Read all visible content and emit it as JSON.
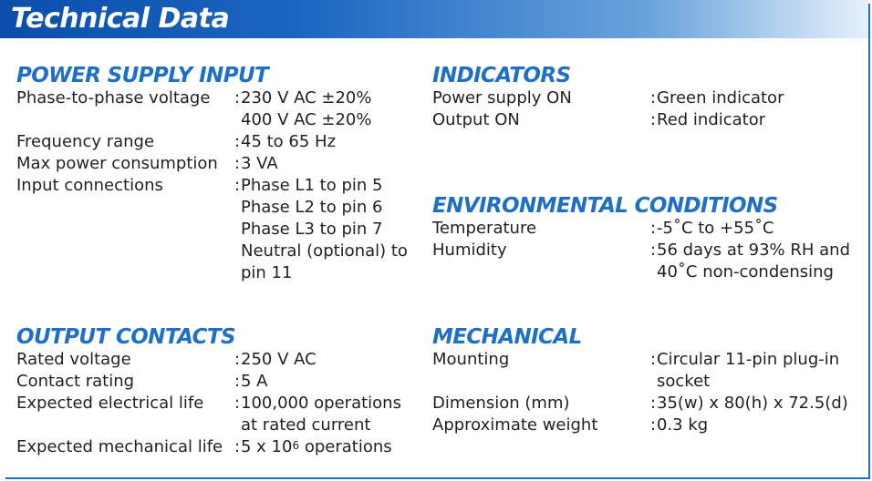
{
  "title": "Technical Data",
  "sections": {
    "power_supply_input": {
      "heading": "POWER SUPPLY INPUT",
      "rows": [
        {
          "label": "Phase-to-phase voltage",
          "values": [
            "230 V AC ±20%",
            "400 V AC ±20%"
          ]
        },
        {
          "label": "Frequency range",
          "values": [
            "45 to 65 Hz"
          ]
        },
        {
          "label": "Max power consumption",
          "values": [
            "3 VA"
          ]
        },
        {
          "label": "Input connections",
          "values": [
            "Phase L1 to pin 5",
            "Phase L2 to pin 6",
            "Phase L3 to pin 7",
            "Neutral (optional) to",
            "pin 11"
          ]
        }
      ]
    },
    "output_contacts": {
      "heading": "OUTPUT CONTACTS",
      "rows": [
        {
          "label": "Rated voltage",
          "values": [
            "250 V AC"
          ]
        },
        {
          "label": "Contact rating",
          "values": [
            "5 A"
          ]
        },
        {
          "label": "Expected electrical life",
          "values": [
            "100,000 operations",
            "at rated current"
          ]
        },
        {
          "label": "Expected mechanical life",
          "values": [
            "5 x 10"
          ],
          "superscript": "6",
          "suffix": " operations"
        }
      ]
    },
    "indicators": {
      "heading": "INDICATORS",
      "rows": [
        {
          "label": "Power supply ON",
          "values": [
            "Green indicator"
          ]
        },
        {
          "label": "Output ON",
          "values": [
            "Red indicator"
          ]
        }
      ]
    },
    "environmental_conditions": {
      "heading": "ENVIRONMENTAL CONDITIONS",
      "rows": [
        {
          "label": "Temperature",
          "values": [
            "-5˚C to +55˚C"
          ]
        },
        {
          "label": "Humidity",
          "values": [
            "56 days at 93% RH and",
            "40˚C non-condensing"
          ]
        }
      ]
    },
    "mechanical": {
      "heading": "MECHANICAL",
      "rows": [
        {
          "label": "Mounting",
          "values": [
            "Circular 11-pin plug-in",
            "socket"
          ]
        },
        {
          "label": "Dimension (mm)",
          "values": [
            "35(w) x 80(h) x 72.5(d)"
          ]
        },
        {
          "label": "Approximate weight",
          "values": [
            "0.3 kg"
          ]
        }
      ]
    }
  },
  "colors": {
    "heading": "#1e6fc7",
    "banner_start": "#0a4eaa",
    "banner_end": "#e6f0fb",
    "text": "#231f20"
  }
}
